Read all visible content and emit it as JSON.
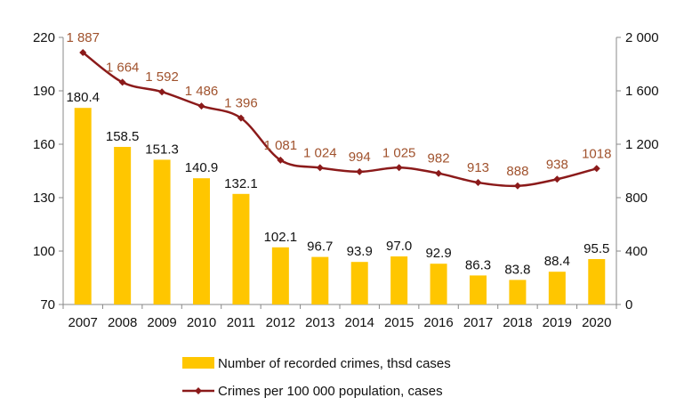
{
  "chart_data": {
    "type": "bar+line",
    "categories": [
      "2007",
      "2008",
      "2009",
      "2010",
      "2011",
      "2012",
      "2013",
      "2014",
      "2015",
      "2016",
      "2017",
      "2018",
      "2019",
      "2020"
    ],
    "series": [
      {
        "name": "Number of recorded crimes, thsd cases",
        "type": "bar",
        "axis": "left",
        "values": [
          180.4,
          158.5,
          151.3,
          140.9,
          132.1,
          102.1,
          96.7,
          93.9,
          97.0,
          92.9,
          86.3,
          83.8,
          88.4,
          95.5
        ],
        "labels": [
          "180.4",
          "158.5",
          "151.3",
          "140.9",
          "132.1",
          "102.1",
          "96.7",
          "93.9",
          "97.0",
          "92.9",
          "86.3",
          "83.8",
          "88.4",
          "95.5"
        ],
        "color": "#FFC600"
      },
      {
        "name": "Crimes per 100 000 population, cases",
        "type": "line",
        "axis": "right",
        "values": [
          1887,
          1664,
          1592,
          1486,
          1396,
          1081,
          1024,
          994,
          1025,
          982,
          913,
          888,
          938,
          1018
        ],
        "labels": [
          "1 887",
          "1 664",
          "1 592",
          "1 486",
          "1 396",
          "1 081",
          "1 024",
          "994",
          "1 025",
          "982",
          "913",
          "888",
          "938",
          "1018"
        ],
        "color": "#8B1A1A",
        "label_color": "#A0522D"
      }
    ],
    "left_axis": {
      "min": 70,
      "max": 220,
      "ticks": [
        70,
        100,
        130,
        160,
        190,
        220
      ],
      "tick_labels": [
        "70",
        "100",
        "130",
        "160",
        "190",
        "220"
      ]
    },
    "right_axis": {
      "min": 0,
      "max": 2000,
      "ticks": [
        0,
        400,
        800,
        1200,
        1600,
        2000
      ],
      "tick_labels": [
        "0",
        "400",
        "800",
        "1 200",
        "1 600",
        "2 000"
      ]
    },
    "title": "",
    "legend": "bottom"
  }
}
